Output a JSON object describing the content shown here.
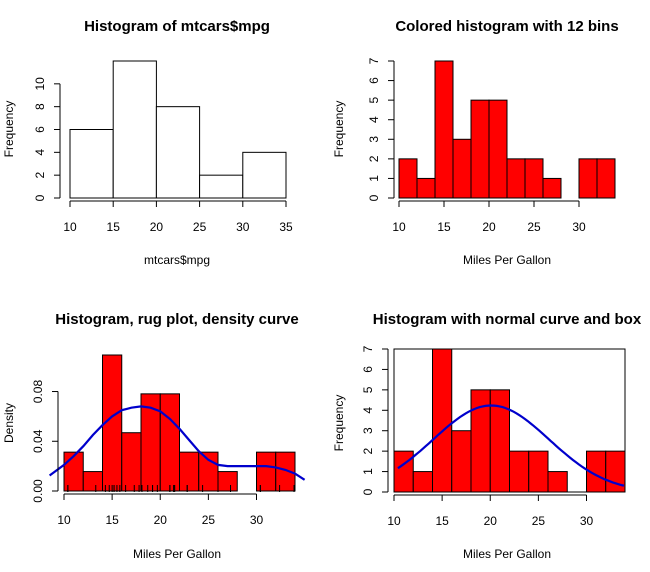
{
  "chart_data": [
    {
      "type": "bar",
      "title": "Histogram of mtcars$mpg",
      "xlabel": "mtcars$mpg",
      "ylabel": "Frequency",
      "breaks": [
        10,
        15,
        20,
        25,
        30,
        35
      ],
      "values": [
        6,
        12,
        8,
        2,
        4
      ],
      "xlim": [
        10,
        35
      ],
      "ylim": [
        0,
        12
      ],
      "xticks": [
        10,
        15,
        20,
        25,
        30,
        35
      ],
      "yticks": [
        0,
        2,
        4,
        6,
        8,
        10
      ],
      "fill": "#ffffff",
      "box": false
    },
    {
      "type": "bar",
      "title": "Colored histogram with 12 bins",
      "xlabel": "Miles Per Gallon",
      "ylabel": "Frequency",
      "breaks": [
        10,
        12,
        14,
        16,
        18,
        20,
        22,
        24,
        26,
        28,
        30,
        32,
        34
      ],
      "values": [
        2,
        1,
        7,
        3,
        5,
        5,
        2,
        2,
        1,
        0,
        2,
        2
      ],
      "xlim": [
        10,
        34
      ],
      "ylim": [
        0,
        7
      ],
      "xticks": [
        10,
        15,
        20,
        25,
        30
      ],
      "yticks": [
        0,
        1,
        2,
        3,
        4,
        5,
        6,
        7
      ],
      "fill": "#ff0000",
      "box": false
    },
    {
      "type": "bar",
      "title": "Histogram, rug plot, density curve",
      "xlabel": "Miles Per Gallon",
      "ylabel": "Density",
      "breaks": [
        10,
        12,
        14,
        16,
        18,
        20,
        22,
        24,
        26,
        28,
        30,
        32,
        34
      ],
      "values": [
        0.03125,
        0.015625,
        0.109375,
        0.046875,
        0.078125,
        0.078125,
        0.03125,
        0.03125,
        0.015625,
        0,
        0.03125,
        0.03125
      ],
      "xlim": [
        10,
        34
      ],
      "ylim": [
        0,
        0.109375
      ],
      "xticks": [
        10,
        15,
        20,
        25,
        30
      ],
      "yticks": [
        0,
        0.04,
        0.08
      ],
      "ytick_labels": [
        "0.00",
        "0.04",
        "0.08"
      ],
      "fill": "#ff0000",
      "box": false,
      "curve": {
        "name": "density",
        "color": "#0000cc",
        "x": [
          8.5,
          10,
          11,
          12,
          13,
          14,
          15,
          16,
          17,
          18,
          19,
          20,
          21,
          22,
          23,
          24,
          25,
          26,
          27,
          28,
          29,
          30,
          31,
          32,
          33,
          34,
          35
        ],
        "y": [
          0.0125,
          0.021,
          0.028,
          0.036,
          0.045,
          0.053,
          0.06,
          0.065,
          0.067,
          0.068,
          0.067,
          0.064,
          0.058,
          0.05,
          0.041,
          0.032,
          0.025,
          0.021,
          0.02,
          0.02,
          0.02,
          0.02,
          0.02,
          0.019,
          0.017,
          0.014,
          0.009
        ]
      },
      "rug": [
        10.4,
        10.4,
        13.3,
        14.3,
        14.7,
        15.0,
        15.2,
        15.2,
        15.5,
        15.8,
        16.4,
        17.3,
        17.8,
        18.1,
        18.7,
        19.2,
        19.2,
        19.7,
        21.0,
        21.0,
        21.4,
        21.4,
        21.5,
        22.8,
        22.8,
        24.4,
        26.0,
        27.3,
        30.4,
        30.4,
        32.4,
        33.9
      ]
    },
    {
      "type": "bar",
      "title": "Histogram with normal curve and box",
      "xlabel": "Miles Per Gallon",
      "ylabel": "Frequency",
      "breaks": [
        10,
        12,
        14,
        16,
        18,
        20,
        22,
        24,
        26,
        28,
        30,
        32,
        34
      ],
      "values": [
        2,
        1,
        7,
        3,
        5,
        5,
        2,
        2,
        1,
        0,
        2,
        2
      ],
      "xlim": [
        10,
        34
      ],
      "ylim": [
        0,
        7
      ],
      "xticks": [
        10,
        15,
        20,
        25,
        30
      ],
      "yticks": [
        0,
        1,
        2,
        3,
        4,
        5,
        6,
        7
      ],
      "fill": "#ff0000",
      "box": true,
      "curve": {
        "name": "normal",
        "color": "#0000cc",
        "mean": 20.09,
        "sd": 6.03,
        "n": 32,
        "binwidth": 2,
        "from": 10.4,
        "to": 33.9
      }
    }
  ]
}
